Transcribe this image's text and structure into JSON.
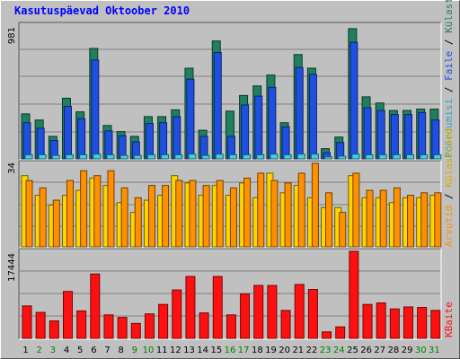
{
  "title": "Kasutuspäevad Oktoober 2010",
  "chart_data": [
    {
      "type": "bar",
      "panel": "top",
      "ymax": 981,
      "ymax_label": "981",
      "categories": [
        "1",
        "2",
        "3",
        "4",
        "5",
        "6",
        "7",
        "8",
        "9",
        "10",
        "11",
        "12",
        "13",
        "14",
        "15",
        "16",
        "17",
        "18",
        "19",
        "20",
        "21",
        "22",
        "23",
        "24",
        "25",
        "26",
        "27",
        "28",
        "29",
        "30",
        "31"
      ],
      "weekend_days": [
        "2",
        "3",
        "9",
        "10",
        "16",
        "17",
        "23",
        "24",
        "30",
        "31"
      ],
      "series": [
        {
          "name": "Külastused",
          "color": "#1f7f5f",
          "values": [
            330,
            285,
            165,
            445,
            345,
            810,
            245,
            200,
            165,
            310,
            310,
            360,
            665,
            210,
            865,
            350,
            465,
            535,
            615,
            265,
            765,
            665,
            75,
            160,
            955,
            455,
            410,
            355,
            355,
            365,
            365
          ]
        },
        {
          "name": "Failid",
          "color": "#1f4fe0",
          "values": [
            265,
            225,
            135,
            385,
            295,
            725,
            205,
            170,
            125,
            260,
            265,
            310,
            585,
            165,
            780,
            165,
            395,
            460,
            525,
            235,
            670,
            620,
            45,
            120,
            855,
            375,
            355,
            325,
            325,
            340,
            285
          ]
        },
        {
          "name": "Pöördumisi",
          "color": "#3fd0e8",
          "values": [
            30,
            30,
            25,
            30,
            30,
            35,
            30,
            25,
            25,
            30,
            30,
            30,
            35,
            25,
            35,
            30,
            30,
            30,
            35,
            30,
            35,
            35,
            15,
            20,
            35,
            30,
            30,
            30,
            30,
            30,
            30
          ]
        }
      ],
      "side_labels": [
        "Pöördumisi",
        "Faile",
        "Külastused"
      ]
    },
    {
      "type": "bar",
      "panel": "middle",
      "ymax": 34,
      "ymax_label": "34",
      "series": [
        {
          "name": "Külastused",
          "color": "#ffd400",
          "values": [
            29,
            21,
            17,
            21,
            23,
            28,
            25,
            18,
            14,
            19,
            21,
            29,
            26,
            21,
            25,
            21,
            26,
            20,
            30,
            22,
            25,
            20,
            16,
            16,
            29,
            20,
            20,
            18,
            20,
            20,
            21
          ]
        },
        {
          "name": "Arvutid",
          "color": "#ff9000",
          "values": [
            27,
            24,
            19,
            27,
            31,
            29,
            31,
            24,
            20,
            25,
            25,
            27,
            27,
            25,
            27,
            24,
            28,
            30,
            27,
            26,
            30,
            34,
            22,
            14,
            30,
            23,
            23,
            24,
            21,
            22,
            22
          ]
        }
      ],
      "side_labels": [
        "Arvutid",
        "Külastused"
      ]
    },
    {
      "type": "bar",
      "panel": "bottom",
      "ymax": 17444,
      "ymax_label": "17444",
      "series": [
        {
          "name": "KBaite",
          "color": "#ff1010",
          "values": [
            6500,
            5200,
            3500,
            9400,
            5500,
            12900,
            4700,
            4200,
            3000,
            4900,
            6800,
            9700,
            12400,
            5100,
            12400,
            4700,
            8900,
            10600,
            10600,
            5600,
            10800,
            9800,
            1300,
            2300,
            17444,
            6800,
            7100,
            5900,
            6300,
            6200,
            5600
          ]
        }
      ],
      "side_labels": [
        "KBaite"
      ]
    }
  ],
  "colors": {
    "weekday_tick": "#000000",
    "weekend_tick": "#008000",
    "panel_bg": "#c0c0c0",
    "grid": "#808080",
    "title": "#0000ff"
  }
}
